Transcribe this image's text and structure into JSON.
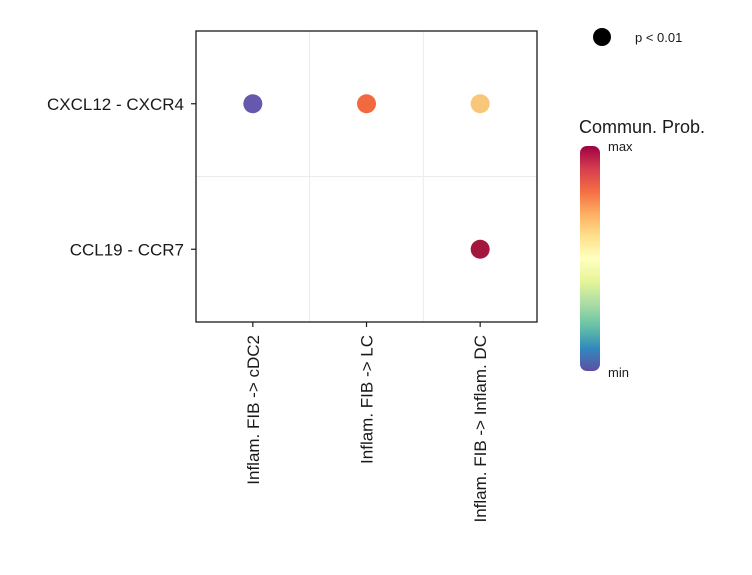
{
  "chart_data": {
    "type": "scatter",
    "title": "",
    "xlabel": "",
    "ylabel": "",
    "x_categories": [
      "Inflam. FIB -> cDC2",
      "Inflam. FIB -> LC",
      "Inflam. FIB -> Inflam. DC"
    ],
    "y_categories": [
      "CXCL12 - CXCR4",
      "CCL19 - CCR7"
    ],
    "points": [
      {
        "x": "Inflam. FIB -> cDC2",
        "y": "CXCL12 - CXCR4",
        "prob": 0.0,
        "color": "#6658ad",
        "pvalue": "p < 0.01"
      },
      {
        "x": "Inflam. FIB -> LC",
        "y": "CXCL12 - CXCR4",
        "prob": 0.75,
        "color": "#f2683f",
        "pvalue": "p < 0.01"
      },
      {
        "x": "Inflam. FIB -> Inflam. DC",
        "y": "CXCL12 - CXCR4",
        "prob": 0.55,
        "color": "#f9c77a",
        "pvalue": "p < 0.01"
      },
      {
        "x": "Inflam. FIB -> Inflam. DC",
        "y": "CCL19 - CCR7",
        "prob": 1.0,
        "color": "#a3173f",
        "pvalue": "p < 0.01"
      }
    ],
    "grid": true,
    "size_legend": {
      "label": "p < 0.01"
    },
    "color_legend": {
      "title": "Commun. Prob.",
      "max_label": "max",
      "min_label": "min",
      "colormap": [
        "#9e0142",
        "#d53e4f",
        "#f46d43",
        "#fdae61",
        "#fee08b",
        "#ffffbf",
        "#e6f598",
        "#abdda4",
        "#66c2a5",
        "#3288bd",
        "#5e4fa2"
      ]
    }
  }
}
